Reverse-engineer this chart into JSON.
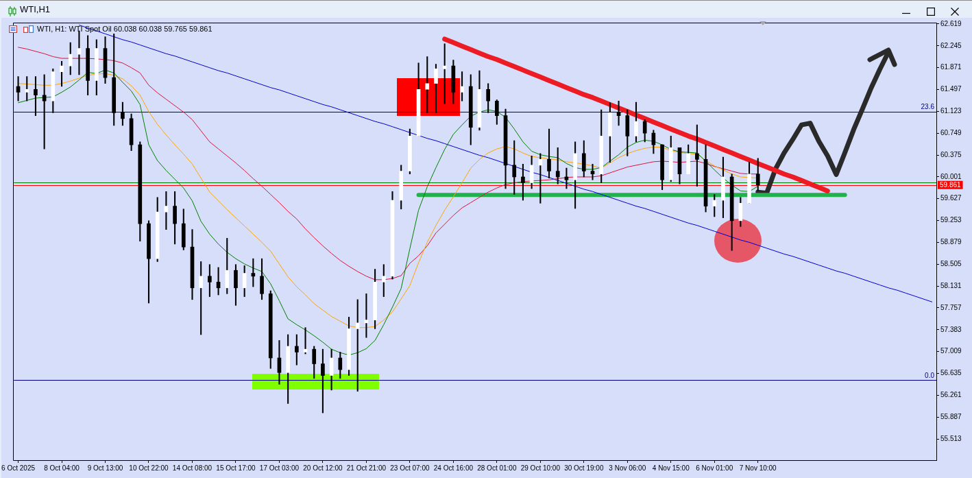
{
  "chart_data": {
    "type": "candlestick",
    "title": "WTI,H1",
    "subtitle": "WTI, H1: WTI Spot Oil 60.038 60.038 59.765 59.861",
    "color": "#000000",
    "categories": [
      "6 Oct 2025",
      null,
      null,
      null,
      null,
      "8 Oct 04:00",
      null,
      null,
      null,
      null,
      "9 Oct 13:00",
      null,
      null,
      null,
      null,
      "10 Oct 22:00",
      null,
      null,
      null,
      null,
      "14 Oct 08:00",
      null,
      null,
      null,
      null,
      "15 Oct 17:00",
      null,
      null,
      null,
      null,
      "17 Oct 03:00",
      null,
      null,
      null,
      null,
      "20 Oct 12:00",
      null,
      null,
      null,
      null,
      "21 Oct 21:00",
      null,
      null,
      null,
      null,
      "23 Oct 07:00",
      null,
      null,
      null,
      null,
      "24 Oct 16:00",
      null,
      null,
      null,
      null,
      "28 Oct 01:00",
      null,
      null,
      null,
      null,
      "29 Oct 10:00",
      null,
      null,
      null,
      null,
      "30 Oct 19:00",
      null,
      null,
      null,
      null,
      "3 Nov 06:00",
      null,
      null,
      null,
      null,
      "4 Nov 15:00",
      null,
      null,
      null,
      null,
      "6 Nov 01:00",
      null,
      null,
      null,
      null,
      "7 Nov 10:00",
      null,
      null,
      null,
      null,
      null,
      null,
      null,
      null,
      null,
      null,
      null,
      null,
      null,
      null,
      null,
      null,
      null,
      null,
      null,
      null
    ],
    "ohlc": [
      [
        61.55,
        61.72,
        61.3,
        61.45
      ],
      [
        61.45,
        61.72,
        61.3,
        61.5
      ],
      [
        61.5,
        61.72,
        61.05,
        61.4
      ],
      [
        61.4,
        61.75,
        60.48,
        61.3
      ],
      [
        61.3,
        61.85,
        61.1,
        61.8
      ],
      [
        61.8,
        61.98,
        61.55,
        61.9
      ],
      [
        61.9,
        62.3,
        61.75,
        62.1
      ],
      [
        62.1,
        62.5,
        61.75,
        62.2
      ],
      [
        62.2,
        62.42,
        61.4,
        61.65
      ],
      [
        61.65,
        62.35,
        61.4,
        62.2
      ],
      [
        62.2,
        62.4,
        61.6,
        61.7
      ],
      [
        61.7,
        62.45,
        60.88,
        61.1
      ],
      [
        61.1,
        61.28,
        60.88,
        61.0
      ],
      [
        61.0,
        61.08,
        60.45,
        60.55
      ],
      [
        60.55,
        60.6,
        58.9,
        59.2
      ],
      [
        59.2,
        59.25,
        57.84,
        58.6
      ],
      [
        58.6,
        59.65,
        58.55,
        59.4
      ],
      [
        59.4,
        59.75,
        59.1,
        59.5
      ],
      [
        59.5,
        59.75,
        58.85,
        59.2
      ],
      [
        59.2,
        59.45,
        58.75,
        58.8
      ],
      [
        58.8,
        59.1,
        57.9,
        58.1
      ],
      [
        58.1,
        58.55,
        57.3,
        58.3
      ],
      [
        58.3,
        58.5,
        57.95,
        58.2
      ],
      [
        58.2,
        58.45,
        57.98,
        58.1
      ],
      [
        58.1,
        58.95,
        58.0,
        58.4
      ],
      [
        58.4,
        58.5,
        57.8,
        58.1
      ],
      [
        58.1,
        58.48,
        57.95,
        58.35
      ],
      [
        58.35,
        58.6,
        58.12,
        58.3
      ],
      [
        58.3,
        58.6,
        57.9,
        58.0
      ],
      [
        58.0,
        58.05,
        56.72,
        56.9
      ],
      [
        56.9,
        57.2,
        56.45,
        56.65
      ],
      [
        56.65,
        57.3,
        56.12,
        57.1
      ],
      [
        57.1,
        57.3,
        56.78,
        57.0
      ],
      [
        57.0,
        57.42,
        56.97,
        57.05
      ],
      [
        57.05,
        57.1,
        56.55,
        56.8
      ],
      [
        56.8,
        57.05,
        55.96,
        56.6
      ],
      [
        56.6,
        57.05,
        56.35,
        56.9
      ],
      [
        56.9,
        57.0,
        56.55,
        56.7
      ],
      [
        56.7,
        57.6,
        56.6,
        57.4
      ],
      [
        57.4,
        57.9,
        56.33,
        57.5
      ],
      [
        57.5,
        58.0,
        57.25,
        57.55
      ],
      [
        57.55,
        58.42,
        57.4,
        58.2
      ],
      [
        58.2,
        58.5,
        57.95,
        58.3
      ],
      [
        58.3,
        59.75,
        58.25,
        59.6
      ],
      [
        59.6,
        60.2,
        59.45,
        60.1
      ],
      [
        60.1,
        60.82,
        60.05,
        60.7
      ],
      [
        60.7,
        61.95,
        60.7,
        61.5
      ],
      [
        61.5,
        62.06,
        61.1,
        61.6
      ],
      [
        61.6,
        61.93,
        61.1,
        61.85
      ],
      [
        61.85,
        62.28,
        61.25,
        61.9
      ],
      [
        61.9,
        62.0,
        61.25,
        61.45
      ],
      [
        61.45,
        61.8,
        61.3,
        61.55
      ],
      [
        61.55,
        61.75,
        60.55,
        60.85
      ],
      [
        60.85,
        61.82,
        60.8,
        61.5
      ],
      [
        61.5,
        61.6,
        61.1,
        61.3
      ],
      [
        61.3,
        61.32,
        60.9,
        61.05
      ],
      [
        61.05,
        61.16,
        59.8,
        60.2
      ],
      [
        60.2,
        60.62,
        59.7,
        60.0
      ],
      [
        60.0,
        60.22,
        59.6,
        59.9
      ],
      [
        59.9,
        60.36,
        59.8,
        60.2
      ],
      [
        60.2,
        60.4,
        59.55,
        60.3
      ],
      [
        60.3,
        60.82,
        59.98,
        60.1
      ],
      [
        60.1,
        60.5,
        59.88,
        60.0
      ],
      [
        60.0,
        60.15,
        59.8,
        59.95
      ],
      [
        59.95,
        60.6,
        59.46,
        60.4
      ],
      [
        60.4,
        60.62,
        60.0,
        60.1
      ],
      [
        60.1,
        60.22,
        59.95,
        60.05
      ],
      [
        60.05,
        61.15,
        59.9,
        60.7
      ],
      [
        60.7,
        61.27,
        60.25,
        61.1
      ],
      [
        61.1,
        61.3,
        60.88,
        61.05
      ],
      [
        61.05,
        61.15,
        60.36,
        60.7
      ],
      [
        60.7,
        61.28,
        60.6,
        60.95
      ],
      [
        60.95,
        60.98,
        60.6,
        60.75
      ],
      [
        60.75,
        60.8,
        60.4,
        60.55
      ],
      [
        60.55,
        60.55,
        59.78,
        59.95
      ],
      [
        59.95,
        60.7,
        59.92,
        60.5
      ],
      [
        60.5,
        60.5,
        59.88,
        60.05
      ],
      [
        60.05,
        60.55,
        60.05,
        60.4
      ],
      [
        60.4,
        60.89,
        59.84,
        60.3
      ],
      [
        60.3,
        60.55,
        59.4,
        59.5
      ],
      [
        59.5,
        59.7,
        59.32,
        59.6
      ],
      [
        59.6,
        60.34,
        59.3,
        60.0
      ],
      [
        60.0,
        60.05,
        58.74,
        59.25
      ],
      [
        59.25,
        59.65,
        59.15,
        59.55
      ],
      [
        59.55,
        60.25,
        59.55,
        60.05
      ],
      [
        60.05,
        60.32,
        59.765,
        59.861
      ],
      null,
      null,
      null,
      null,
      null,
      null,
      null,
      null,
      null,
      null,
      null,
      null,
      null,
      null,
      null,
      null,
      null,
      null,
      null,
      null
    ],
    "colors": [
      "#000000",
      "#ffffff",
      "#000000",
      "#000000",
      "#ffffff",
      "#ffffff",
      "#ffffff",
      "#ffffff",
      "#000000",
      "#ffffff",
      "#000000",
      "#000000",
      "#000000",
      "#000000",
      "#000000",
      "#000000",
      "#ffffff",
      "#ffffff",
      "#000000",
      "#000000",
      "#000000",
      "#ffffff",
      "#000000",
      "#000000",
      "#ffffff",
      "#000000",
      "#ffffff",
      "#000000",
      "#000000",
      "#000000",
      "#000000",
      "#ffffff",
      "#000000",
      "#ffffff",
      "#000000",
      "#000000",
      "#ffffff",
      "#000000",
      "#ffffff",
      "#ffffff",
      "#ffffff",
      "#ffffff",
      "#ffffff",
      "#ffffff",
      "#ffffff",
      "#ffffff",
      "#ffffff",
      "#ffffff",
      "#ffffff",
      "#ffffff",
      "#000000",
      "#ffffff",
      "#000000",
      "#ffffff",
      "#000000",
      "#000000",
      "#000000",
      "#000000",
      "#000000",
      "#ffffff",
      "#ffffff",
      "#000000",
      "#000000",
      "#000000",
      "#ffffff",
      "#000000",
      "#000000",
      "#ffffff",
      "#ffffff",
      "#000000",
      "#000000",
      "#ffffff",
      "#000000",
      "#000000",
      "#000000",
      "#ffffff",
      "#000000",
      "#ffffff",
      "#000000",
      "#000000",
      "#ffffff",
      "#ffffff",
      "#000000",
      "#ffffff",
      "#ffffff",
      "#000000",
      null,
      null,
      null,
      null,
      null,
      null,
      null,
      null,
      null,
      null,
      null,
      null,
      null,
      null,
      null,
      null,
      null,
      null,
      null,
      null
    ],
    "series": [
      {
        "type": "line",
        "color": "#008000",
        "values": [
          61.27,
          61.31,
          61.35,
          61.36,
          61.37,
          61.45,
          61.54,
          61.66,
          61.79,
          61.77,
          61.83,
          61.78,
          61.62,
          61.47,
          61.24,
          60.55,
          60.28,
          60.11,
          59.96,
          59.81,
          59.59,
          59.24,
          59.02,
          58.85,
          58.71,
          58.6,
          58.51,
          58.44,
          58.38,
          58.17,
          57.88,
          57.57,
          57.47,
          57.38,
          57.28,
          57.17,
          57.05,
          56.99,
          56.95,
          56.99,
          57.06,
          57.2,
          57.47,
          57.77,
          58.09,
          58.77,
          59.43,
          59.83,
          60.16,
          60.47,
          60.73,
          60.89,
          61.04,
          61.11,
          61.15,
          61.12,
          61.02,
          60.82,
          60.6,
          60.44,
          60.38,
          60.35,
          60.33,
          60.23,
          60.16,
          60.13,
          60.13,
          60.16,
          60.27,
          60.38,
          60.51,
          60.59,
          60.63,
          60.61,
          60.55,
          60.47,
          60.43,
          60.42,
          60.41,
          60.27,
          60.12,
          59.98,
          59.86,
          59.76,
          59.75,
          59.84,
          null,
          null,
          null,
          null,
          null,
          null,
          null,
          null,
          null,
          null,
          null,
          null,
          null,
          null,
          null,
          null,
          null,
          null,
          null,
          null
        ]
      },
      {
        "type": "line",
        "color": "#ffa500",
        "values": [
          61.6,
          61.59,
          61.58,
          61.57,
          61.57,
          61.6,
          61.64,
          61.69,
          61.74,
          61.76,
          61.77,
          61.74,
          61.68,
          61.56,
          61.4,
          61.12,
          60.9,
          60.72,
          60.55,
          60.39,
          60.22,
          59.98,
          59.74,
          59.59,
          59.44,
          59.3,
          59.16,
          59.02,
          58.88,
          58.73,
          58.51,
          58.29,
          58.12,
          57.98,
          57.83,
          57.72,
          57.61,
          57.53,
          57.45,
          57.42,
          57.42,
          57.44,
          57.55,
          57.69,
          57.91,
          58.14,
          58.53,
          58.88,
          59.17,
          59.43,
          59.66,
          59.9,
          60.15,
          60.3,
          60.41,
          60.48,
          60.52,
          60.48,
          60.41,
          60.35,
          60.33,
          60.31,
          60.29,
          60.26,
          60.24,
          60.22,
          60.19,
          60.15,
          60.24,
          60.33,
          60.4,
          60.45,
          60.49,
          60.51,
          60.51,
          60.45,
          60.42,
          60.4,
          60.39,
          60.28,
          60.19,
          60.12,
          60.05,
          60.0,
          59.99,
          59.98,
          null,
          null,
          null,
          null,
          null,
          null,
          null,
          null,
          null,
          null,
          null,
          null,
          null,
          null,
          null,
          null,
          null,
          null,
          null,
          null
        ]
      },
      {
        "type": "line",
        "color": "#dc143c",
        "values": [
          62.22,
          62.19,
          62.15,
          62.11,
          62.06,
          62.03,
          62.03,
          62.03,
          62.03,
          62.02,
          62.01,
          61.99,
          61.95,
          61.87,
          61.78,
          61.57,
          61.44,
          61.33,
          61.22,
          61.11,
          60.98,
          60.79,
          60.6,
          60.48,
          60.36,
          60.24,
          60.11,
          59.97,
          59.84,
          59.7,
          59.56,
          59.41,
          59.28,
          59.11,
          58.96,
          58.82,
          58.69,
          58.57,
          58.47,
          58.38,
          58.3,
          58.24,
          58.24,
          58.26,
          58.31,
          58.52,
          58.65,
          58.82,
          59.04,
          59.19,
          59.34,
          59.47,
          59.56,
          59.65,
          59.74,
          59.81,
          59.87,
          59.9,
          59.92,
          59.93,
          59.94,
          59.95,
          59.97,
          59.99,
          60.0,
          60.0,
          60.0,
          60.02,
          60.07,
          60.12,
          60.17,
          60.2,
          60.23,
          60.26,
          60.27,
          60.26,
          60.25,
          60.26,
          60.27,
          60.23,
          60.18,
          60.14,
          60.1,
          60.06,
          60.05,
          60.05,
          null,
          null,
          null,
          null,
          null,
          null,
          null,
          null,
          null,
          null,
          null,
          null,
          null,
          null,
          null,
          null,
          null,
          null,
          null,
          null
        ]
      },
      {
        "type": "line",
        "color": "#0000cd",
        "values": [
          null,
          null,
          null,
          null,
          null,
          null,
          null,
          62.6,
          62.55,
          62.5,
          62.45,
          62.4,
          62.35,
          62.31,
          62.26,
          62.21,
          62.16,
          62.11,
          62.07,
          62.02,
          61.97,
          61.92,
          61.87,
          61.82,
          61.78,
          61.73,
          61.68,
          61.63,
          61.58,
          61.53,
          61.49,
          61.44,
          61.39,
          61.34,
          61.29,
          61.24,
          61.2,
          61.15,
          61.1,
          61.05,
          61.0,
          60.95,
          60.91,
          60.86,
          60.81,
          60.76,
          60.71,
          60.66,
          60.62,
          60.57,
          60.52,
          60.47,
          60.42,
          60.37,
          60.33,
          60.28,
          60.23,
          60.18,
          60.13,
          60.08,
          60.04,
          59.99,
          59.94,
          59.89,
          59.84,
          59.79,
          59.75,
          59.7,
          59.65,
          59.6,
          59.55,
          59.5,
          59.46,
          59.41,
          59.36,
          59.31,
          59.26,
          59.21,
          59.17,
          59.12,
          59.07,
          59.02,
          58.97,
          58.92,
          58.88,
          58.83,
          58.78,
          58.73,
          58.68,
          58.64,
          58.59,
          58.54,
          58.49,
          58.44,
          58.39,
          58.35,
          58.3,
          58.25,
          58.2,
          58.15,
          58.1,
          58.06,
          58.01,
          57.96,
          57.91,
          57.86
        ]
      },
      {
        "type": "line",
        "color": "#ed1c24",
        "values": [
          null,
          null,
          null,
          null,
          null,
          null,
          null,
          null,
          null,
          null,
          null,
          null,
          null,
          null,
          null,
          null,
          null,
          null,
          null,
          null,
          null,
          null,
          null,
          null,
          null,
          null,
          null,
          null,
          null,
          null,
          null,
          null,
          null,
          null,
          null,
          null,
          null,
          null,
          null,
          null,
          null,
          null,
          null,
          null,
          null,
          null,
          null,
          null,
          null,
          62.36,
          62.3,
          62.24,
          62.18,
          62.12,
          62.06,
          62.01,
          61.95,
          61.89,
          61.83,
          61.77,
          61.71,
          61.65,
          61.59,
          61.53,
          61.47,
          61.41,
          61.36,
          61.3,
          61.24,
          61.18,
          61.12,
          61.06,
          61.0,
          60.94,
          60.88,
          60.82,
          60.76,
          60.7,
          60.65,
          60.59,
          60.53,
          60.47,
          60.41,
          60.35,
          60.29,
          60.23,
          60.17,
          60.11,
          60.05,
          60.0,
          59.94,
          59.88,
          59.82,
          59.76,
          null,
          null,
          null,
          null,
          null,
          null,
          null,
          null,
          null,
          null,
          null,
          null
        ]
      },
      {
        "type": "line",
        "color": "#22b14c",
        "values": [
          null,
          null,
          null,
          null,
          null,
          null,
          null,
          null,
          null,
          null,
          null,
          null,
          null,
          null,
          null,
          null,
          null,
          null,
          null,
          null,
          null,
          null,
          null,
          null,
          null,
          null,
          null,
          null,
          null,
          null,
          null,
          null,
          null,
          null,
          null,
          null,
          null,
          null,
          null,
          null,
          null,
          null,
          null,
          null,
          null,
          null,
          59.69,
          59.69,
          59.69,
          59.69,
          59.69,
          59.69,
          59.69,
          59.69,
          59.69,
          59.69,
          59.69,
          59.69,
          59.69,
          59.69,
          59.69,
          59.69,
          59.69,
          59.69,
          59.69,
          59.69,
          59.69,
          59.69,
          59.69,
          59.69,
          59.69,
          59.69,
          59.69,
          59.69,
          59.69,
          59.69,
          59.69,
          59.69,
          59.69,
          59.69,
          59.69,
          59.69,
          59.69,
          59.69,
          59.69,
          59.69,
          59.69,
          59.69,
          59.69,
          59.69,
          59.69,
          59.69,
          59.69,
          59.69,
          59.69,
          59.69,
          null,
          null,
          null,
          null,
          null,
          null,
          null,
          null,
          null,
          null
        ]
      },
      {
        "type": "line",
        "color": "#2a2a2a",
        "values": [
          null,
          null,
          null,
          null,
          null,
          null,
          null,
          null,
          null,
          null,
          null,
          null,
          null,
          null,
          null,
          null,
          null,
          null,
          null,
          null,
          null,
          null,
          null,
          null,
          null,
          null,
          null,
          null,
          null,
          null,
          null,
          null,
          null,
          null,
          null,
          null,
          null,
          null,
          null,
          null,
          null,
          null,
          null,
          null,
          null,
          null,
          null,
          null,
          null,
          null,
          null,
          null,
          null,
          null,
          null,
          null,
          null,
          null,
          null,
          null,
          null,
          null,
          null,
          null,
          null,
          null,
          null,
          null,
          null,
          null,
          null,
          null,
          null,
          null,
          null,
          null,
          null,
          null,
          null,
          null,
          null,
          null,
          null,
          null,
          null,
          59.74,
          59.72,
          60.13,
          60.41,
          60.64,
          60.89,
          60.92,
          60.61,
          60.36,
          60.04,
          60.42,
          60.81,
          61.16,
          61.52,
          61.84,
          62.14,
          null,
          null,
          null,
          null,
          null
        ]
      }
    ],
    "ylim": [
      55.15,
      62.63
    ],
    "yticks": [
      62.619,
      62.245,
      61.871,
      61.497,
      61.123,
      60.749,
      60.375,
      60.001,
      59.627,
      59.253,
      58.879,
      58.505,
      58.131,
      57.757,
      57.383,
      57.009,
      56.635,
      56.261,
      55.887,
      55.513
    ],
    "ref_lines": [
      {
        "axis": "y",
        "value": 61.12,
        "color": "#000080"
      },
      {
        "axis": "y",
        "value": 56.52,
        "color": "#000080"
      },
      {
        "axis": "y",
        "value": 59.9,
        "color": "#008000"
      },
      {
        "axis": "y",
        "value": 59.861,
        "label": "59.861",
        "color": "#ff0000"
      }
    ],
    "annotations": [
      {
        "text": "23.6",
        "y": 61.12
      },
      {
        "text": "0.0",
        "y": 56.52
      }
    ]
  }
}
